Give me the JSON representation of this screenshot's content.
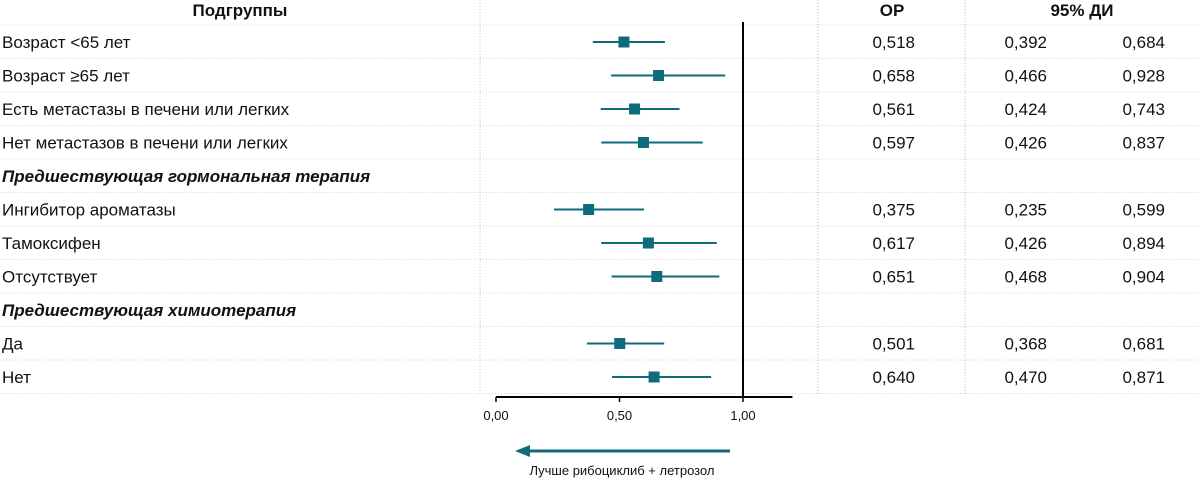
{
  "chart_data": {
    "type": "forest",
    "headers": {
      "subgroups": "Подгруппы",
      "hr": "ОР",
      "ci": "95% ДИ"
    },
    "rows": [
      {
        "kind": "item",
        "label": "Возраст <65 лет",
        "hr": 0.518,
        "lo": 0.392,
        "hi": 0.684,
        "hr_text": "0,518",
        "lo_text": "0,392",
        "hi_text": "0,684"
      },
      {
        "kind": "item",
        "label": "Возраст ≥65 лет",
        "hr": 0.658,
        "lo": 0.466,
        "hi": 0.928,
        "hr_text": "0,658",
        "lo_text": "0,466",
        "hi_text": "0,928"
      },
      {
        "kind": "item",
        "label": "Есть метастазы в печени или легких",
        "hr": 0.561,
        "lo": 0.424,
        "hi": 0.743,
        "hr_text": "0,561",
        "lo_text": "0,424",
        "hi_text": "0,743"
      },
      {
        "kind": "item",
        "label": "Нет метастазов в печени или легких",
        "hr": 0.597,
        "lo": 0.426,
        "hi": 0.837,
        "hr_text": "0,597",
        "lo_text": "0,426",
        "hi_text": "0,837"
      },
      {
        "kind": "group",
        "label": "Предшествующая гормональная терапия"
      },
      {
        "kind": "item",
        "label": "Ингибитор ароматазы",
        "hr": 0.375,
        "lo": 0.235,
        "hi": 0.599,
        "hr_text": "0,375",
        "lo_text": "0,235",
        "hi_text": "0,599"
      },
      {
        "kind": "item",
        "label": "Тамоксифен",
        "hr": 0.617,
        "lo": 0.426,
        "hi": 0.894,
        "hr_text": "0,617",
        "lo_text": "0,426",
        "hi_text": "0,894"
      },
      {
        "kind": "item",
        "label": "Отсутствует",
        "hr": 0.651,
        "lo": 0.468,
        "hi": 0.904,
        "hr_text": "0,651",
        "lo_text": "0,468",
        "hi_text": "0,904"
      },
      {
        "kind": "group",
        "label": "Предшествующая химиотерапия"
      },
      {
        "kind": "item",
        "label": "Да",
        "hr": 0.501,
        "lo": 0.368,
        "hi": 0.681,
        "hr_text": "0,501",
        "lo_text": "0,368",
        "hi_text": "0,681"
      },
      {
        "kind": "item",
        "label": "Нет",
        "hr": 0.64,
        "lo": 0.47,
        "hi": 0.871,
        "hr_text": "0,640",
        "lo_text": "0,470",
        "hi_text": "0,871"
      }
    ],
    "x_ticks": [
      {
        "value": 0,
        "label": "0,00"
      },
      {
        "value": 0.5,
        "label": "0,50"
      },
      {
        "value": 1,
        "label": "1,00"
      }
    ],
    "xlim": [
      0,
      1.2
    ],
    "reference_line": 1,
    "arrow_label": "Лучше рибоциклиб + летрозол",
    "colors": {
      "marker": "#0f6a7c",
      "text": "#111111",
      "grid": "#b8b8b8"
    }
  }
}
